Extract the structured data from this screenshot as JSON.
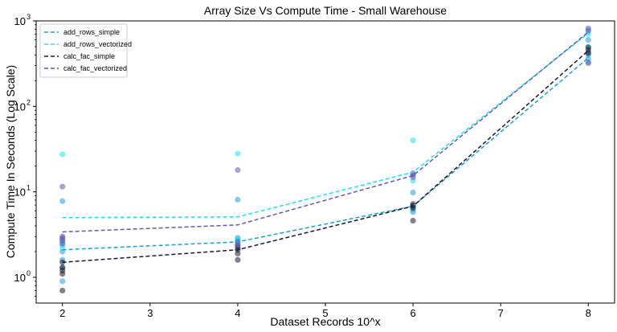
{
  "chart_data": {
    "type": "line",
    "title": "Array Size Vs Compute Time - Small Warehouse",
    "xlabel": "Dataset Records 10^x",
    "ylabel": "Compute Time In Seconds (Log Scale)",
    "yscale": "log",
    "xlim": [
      1.7,
      8.3
    ],
    "ylim": [
      0.5,
      1000
    ],
    "xticks": [
      2,
      3,
      4,
      5,
      6,
      7,
      8
    ],
    "xtick_labels": [
      "2",
      "3",
      "4",
      "5",
      "6",
      "7",
      "8"
    ],
    "yticks": [
      1,
      10,
      100,
      1000
    ],
    "ytick_labels": [
      "10",
      "10",
      "10",
      "10"
    ],
    "ytick_exponents": [
      "0",
      "1",
      "2",
      "3"
    ],
    "legend_position": "top-left",
    "series": [
      {
        "name": "add_rows_simple",
        "color": "#1f9fd9",
        "x": [
          2,
          4,
          6,
          8
        ],
        "values": [
          2.1,
          2.6,
          6.8,
          370
        ],
        "scatter": [
          [
            2,
            0.9
          ],
          [
            2,
            1.3
          ],
          [
            2,
            1.6
          ],
          [
            2,
            2.0
          ],
          [
            2,
            2.4
          ],
          [
            2,
            2.8
          ],
          [
            2,
            7.8
          ],
          [
            4,
            2.2
          ],
          [
            4,
            2.5
          ],
          [
            4,
            2.7
          ],
          [
            4,
            2.9
          ],
          [
            4,
            8.1
          ],
          [
            6,
            5.8
          ],
          [
            6,
            6.2
          ],
          [
            6,
            6.7
          ],
          [
            6,
            9.8
          ],
          [
            8,
            330
          ],
          [
            8,
            360
          ],
          [
            8,
            400
          ],
          [
            8,
            430
          ],
          [
            8,
            600
          ]
        ]
      },
      {
        "name": "add_rows_vectorized",
        "color": "#1ee3f0",
        "x": [
          2,
          4,
          6,
          8
        ],
        "values": [
          5.0,
          5.1,
          17.0,
          720
        ],
        "scatter": [
          [
            2,
            27.5
          ],
          [
            2,
            2.2
          ],
          [
            2,
            2.6
          ],
          [
            4,
            28.0
          ],
          [
            4,
            2.8
          ],
          [
            6,
            40.0
          ],
          [
            6,
            16.0
          ],
          [
            6,
            13.5
          ],
          [
            8,
            780
          ],
          [
            8,
            700
          ],
          [
            8,
            500
          ]
        ]
      },
      {
        "name": "calc_fac_simple",
        "color": "#1a1a2e",
        "x": [
          2,
          4,
          6,
          8
        ],
        "values": [
          1.5,
          2.1,
          6.8,
          450
        ],
        "scatter": [
          [
            2,
            0.7
          ],
          [
            2,
            1.1
          ],
          [
            2,
            1.2
          ],
          [
            2,
            1.3
          ],
          [
            2,
            1.5
          ],
          [
            4,
            1.6
          ],
          [
            4,
            1.9
          ],
          [
            4,
            2.1
          ],
          [
            4,
            2.3
          ],
          [
            6,
            4.6
          ],
          [
            6,
            6.5
          ],
          [
            6,
            6.9
          ],
          [
            6,
            7.2
          ],
          [
            8,
            420
          ],
          [
            8,
            460
          ],
          [
            8,
            490
          ]
        ]
      },
      {
        "name": "calc_fac_vectorized",
        "color": "#6a55b8",
        "x": [
          2,
          4,
          6,
          8
        ],
        "values": [
          3.4,
          4.1,
          15.5,
          740
        ],
        "scatter": [
          [
            2,
            11.5
          ],
          [
            2,
            2.5
          ],
          [
            2,
            2.7
          ],
          [
            2,
            2.9
          ],
          [
            2,
            3.0
          ],
          [
            4,
            18.0
          ],
          [
            4,
            2.4
          ],
          [
            4,
            2.6
          ],
          [
            6,
            14.8
          ],
          [
            6,
            15.8
          ],
          [
            6,
            16.5
          ],
          [
            8,
            320
          ],
          [
            8,
            760
          ],
          [
            8,
            820
          ]
        ]
      }
    ]
  }
}
